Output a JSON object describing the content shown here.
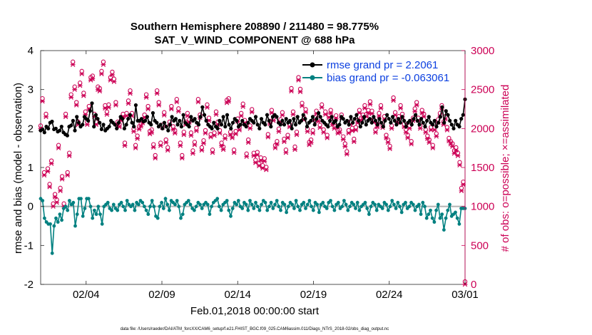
{
  "chart_data": {
    "type": "line",
    "title": "Southern Hemisphere 208890 / 211480 = 98.775%",
    "subtitle": "SAT_V_WIND_COMPONENT @ 688 hPa",
    "xlabel": "Feb.01,2018 00:00:00 start",
    "ylabel_left": "rmse and bias (model - observation)",
    "ylabel_right": "# of obs: o=possible; ×=assimilated",
    "footnote": "data file: /Users/raeder/DAI/ATM_forcXX/CAM6_setup/f.e21.FHIST_BGC.f09_025.CAM6assim.011/Diags_NTrS_2018-02/obs_diag_output.nc",
    "x_ticks": [
      "02/04",
      "02/09",
      "02/14",
      "02/19",
      "02/24",
      "03/01"
    ],
    "x_tick_days": [
      4,
      9,
      14,
      19,
      24,
      29
    ],
    "xlim_days": [
      1,
      29
    ],
    "ylim_left": [
      -2,
      4
    ],
    "yticks_left": [
      "-2",
      "-1",
      "0",
      "1",
      "2",
      "3",
      "4"
    ],
    "ylim_right": [
      0,
      3000
    ],
    "yticks_right": [
      "0",
      "500",
      "1000",
      "1500",
      "2000",
      "2500",
      "3000"
    ],
    "series": [
      {
        "name": "rmse",
        "legend": "rmse grand pr = 2.2061",
        "color": "#000000",
        "axis": "left",
        "values": [
          1.95,
          1.98,
          1.9,
          2.05,
          2.0,
          2.15,
          2.18,
          1.98,
          2.0,
          1.92,
          1.95,
          2.05,
          1.9,
          1.85,
          1.82,
          2.05,
          2.08,
          2.2,
          1.95,
          2.3,
          2.15,
          2.05,
          2.1,
          2.3,
          2.25,
          2.2,
          2.45,
          2.65,
          2.05,
          2.35,
          2.25,
          2.15,
          1.98,
          2.1,
          1.95,
          2.0,
          2.05,
          2.2,
          2.15,
          2.1,
          2.0,
          2.15,
          2.3,
          2.25,
          2.0,
          2.1,
          2.25,
          2.35,
          2.15,
          2.05,
          2.6,
          2.2,
          2.2,
          2.25,
          2.18,
          2.2,
          2.3,
          2.15,
          2.1,
          2.4,
          2.2,
          2.15,
          2.05,
          2.1,
          2.0,
          2.15,
          2.05,
          1.95,
          2.1,
          2.3,
          2.2,
          2.25,
          2.1,
          2.2,
          2.05,
          2.35,
          2.15,
          2.1,
          2.05,
          2.3,
          2.2,
          2.25,
          2.15,
          2.1,
          2.3,
          2.55,
          2.35,
          2.2,
          2.1,
          2.05,
          2.0,
          2.15,
          2.05,
          2.0,
          2.2,
          2.1,
          2.3,
          2.05,
          2.35,
          2.1,
          2.0,
          2.15,
          2.25,
          2.2,
          2.05,
          2.1,
          2.2,
          2.1,
          2.05,
          2.15,
          2.25,
          2.2,
          2.15,
          2.3,
          2.1,
          2.0,
          2.25,
          2.15,
          2.1,
          2.35,
          2.2,
          2.05,
          2.3,
          2.35,
          2.3,
          2.15,
          2.1,
          2.2,
          2.1,
          2.25,
          2.15,
          2.2,
          2.0,
          2.25,
          2.1,
          2.3,
          2.15,
          2.2,
          2.35,
          2.25,
          2.05,
          2.15,
          2.2,
          2.3,
          2.1,
          2.25,
          2.4,
          2.3,
          2.2,
          2.15,
          2.1,
          2.05,
          2.2,
          2.3,
          2.15,
          2.2,
          2.05,
          2.1,
          2.3,
          2.25,
          2.15,
          2.2,
          2.1,
          2.3,
          2.15,
          2.25,
          2.35,
          2.2,
          2.05,
          2.15,
          2.3,
          2.1,
          2.2,
          2.25,
          2.15,
          2.3,
          2.2,
          2.1,
          2.25,
          2.15,
          2.05,
          2.2,
          2.35,
          2.25,
          2.15,
          2.3,
          2.2,
          2.1,
          2.25,
          2.15,
          2.3,
          2.2,
          2.05,
          2.15,
          2.2,
          2.1,
          2.25,
          2.35,
          2.2,
          2.1,
          2.25,
          2.15,
          2.05,
          2.2,
          2.3,
          2.15,
          2.1,
          2.2,
          2.05,
          2.15,
          2.3,
          2.55,
          2.15,
          2.45,
          2.35,
          2.2,
          2.1,
          2.0,
          2.2,
          2.1,
          2.05,
          2.25,
          2.35,
          2.75
        ]
      },
      {
        "name": "bias",
        "legend": "bias grand pr = -0.063061",
        "color": "#008080",
        "axis": "left",
        "values": [
          0.2,
          0.15,
          -0.3,
          -0.4,
          -0.45,
          -0.45,
          -1.2,
          -0.5,
          -0.3,
          -0.4,
          -0.2,
          -0.35,
          -0.05,
          0.0,
          -0.1,
          0.15,
          0.05,
          0.1,
          -0.5,
          -0.2,
          0.2,
          0.2,
          -0.25,
          -0.05,
          0.2,
          0.2,
          0.0,
          -0.3,
          -0.1,
          -0.2,
          0.0,
          -0.2,
          -0.45,
          0.0,
          0.05,
          0.1,
          -0.05,
          -0.1,
          0.05,
          -0.05,
          -0.1,
          0.05,
          0.1,
          0.0,
          -0.1,
          0.15,
          0.05,
          0.0,
          0.05,
          -0.1,
          0.1,
          0.05,
          0.15,
          0.1,
          0.0,
          -0.1,
          -0.2,
          0.0,
          0.15,
          0.0,
          -0.25,
          -0.3,
          0.0,
          0.1,
          -0.05,
          0.2,
          0.05,
          -0.1,
          0.15,
          0.1,
          0.05,
          0.15,
          0.0,
          -0.3,
          -0.2,
          0.05,
          0.1,
          0.15,
          0.05,
          -0.05,
          -0.1,
          0.0,
          0.1,
          0.05,
          -0.05,
          0.05,
          0.1,
          0.05,
          -0.2,
          0.0,
          0.1,
          0.15,
          0.2,
          0.0,
          -0.1,
          0.05,
          0.1,
          0.15,
          -0.1,
          -0.25,
          -0.05,
          0.1,
          0.05,
          0.15,
          0.0,
          -0.05,
          0.1,
          0.05,
          -0.1,
          0.15,
          0.05,
          -0.05,
          0.1,
          0.0,
          -0.1,
          0.05,
          0.15,
          0.1,
          -0.1,
          0.0,
          0.1,
          -0.05,
          0.05,
          0.15,
          0.0,
          -0.1,
          0.1,
          0.05,
          -0.15,
          0.0,
          0.1,
          0.05,
          -0.05,
          0.15,
          0.0,
          -0.1,
          0.05,
          0.1,
          -0.05,
          0.05,
          0.15,
          0.0,
          -0.1,
          0.1,
          0.05,
          -0.15,
          0.05,
          0.1,
          0.0,
          -0.05,
          0.1,
          0.15,
          0.0,
          -0.1,
          0.05,
          0.1,
          -0.05,
          0.0,
          0.15,
          0.05,
          -0.1,
          0.0,
          0.1,
          0.05,
          -0.05,
          0.1,
          -0.1,
          0.0,
          0.05,
          0.1,
          -0.05,
          -0.2,
          0.0,
          0.1,
          0.05,
          -0.1,
          0.05,
          0.0,
          -0.05,
          0.1,
          0.05,
          -0.1,
          0.0,
          0.15,
          0.05,
          -0.05,
          0.1,
          0.0,
          -0.15,
          0.05,
          0.1,
          -0.05,
          0.0,
          0.1,
          0.05,
          -0.1,
          0.0,
          0.05,
          -0.2,
          0.1,
          0.0,
          -0.3,
          -0.2,
          -0.1,
          -0.3,
          -0.4,
          -0.1,
          0.05,
          -0.3,
          -0.2,
          -0.6,
          -0.3,
          -0.1,
          0.05,
          -0.25,
          -0.2,
          -0.15,
          -0.3,
          -0.45,
          -0.05,
          -0.05,
          -0.05
        ]
      },
      {
        "name": "obs_possible",
        "color": "#cc0055",
        "axis": "right",
        "values": [
          2000,
          2350,
          1400,
          2150,
          1450,
          1250,
          1550,
          1000,
          1120,
          1050,
          1750,
          1200,
          1350,
          1000,
          2150,
          1400,
          1650,
          2400,
          2820,
          2500,
          2300,
          2050,
          2550,
          2700,
          2420,
          2180,
          2050,
          2250,
          2620,
          2640,
          2150,
          2050,
          2500,
          2480,
          2700,
          2820,
          2260,
          2180,
          2270,
          2620,
          2690,
          2600,
          2300,
          2050,
          2020,
          2100,
          2150,
          1780,
          2160,
          2320,
          2450,
          2160,
          1960,
          1750,
          1870,
          1990,
          2030,
          2070,
          2140,
          2400,
          2250,
          1930,
          1950,
          1760,
          1620,
          2450,
          2300,
          1780,
          2010,
          2170,
          1820,
          1720,
          2050,
          2250,
          1990,
          1940,
          2340,
          2220,
          1780,
          1620,
          1920,
          2050,
          2160,
          2080,
          1910,
          1680,
          1790,
          1970,
          2340,
          2140,
          1720,
          1810,
          1940,
          2270,
          2100,
          1890,
          1690,
          1910,
          2180,
          2050,
          1940,
          1780,
          1730,
          1870,
          2330,
          2350,
          1920,
          1880,
          1690,
          1930,
          2090,
          1980,
          2160,
          2280,
          2070,
          1640,
          1820,
          2000,
          2210,
          1650,
          1560,
          1660,
          1520,
          1590,
          1490,
          1580,
          1470,
          1890,
          2060,
          2200,
          2100,
          1750,
          1800,
          1960,
          2080,
          2170,
          1830,
          1690,
          1880,
          2020,
          2480,
          2180,
          1730,
          1920,
          2620,
          2470,
          2290,
          2110,
          2210,
          1960,
          1790,
          1820,
          1940,
          2110,
          2190,
          2090,
          2010,
          2270,
          1950,
          2180,
          1880,
          2140,
          2200,
          2050,
          2000,
          2130,
          1940,
          1950,
          2140,
          1860,
          1770,
          1670,
          1940,
          2050,
          1970,
          1830,
          1980,
          2070,
          2200,
          2100,
          2140,
          2260,
          2150,
          2200,
          2310,
          2190,
          2080,
          1950,
          2020,
          2160,
          2260,
          2010,
          2120,
          1880,
          1820,
          1740,
          2000,
          2360,
          2170,
          2080,
          2120,
          2260,
          2150,
          2020,
          1950,
          1880,
          2000,
          1800,
          2100,
          2220,
          2300,
          2100,
          2000,
          2200,
          2150,
          1950,
          1870,
          1820,
          1980,
          1750,
          1980,
          1900,
          2080,
          2160,
          2260,
          2050,
          2120,
          1980,
          1840,
          1800,
          1770,
          1680,
          1720,
          1650,
          1530,
          1200,
          1280,
          0
        ]
      }
    ]
  }
}
